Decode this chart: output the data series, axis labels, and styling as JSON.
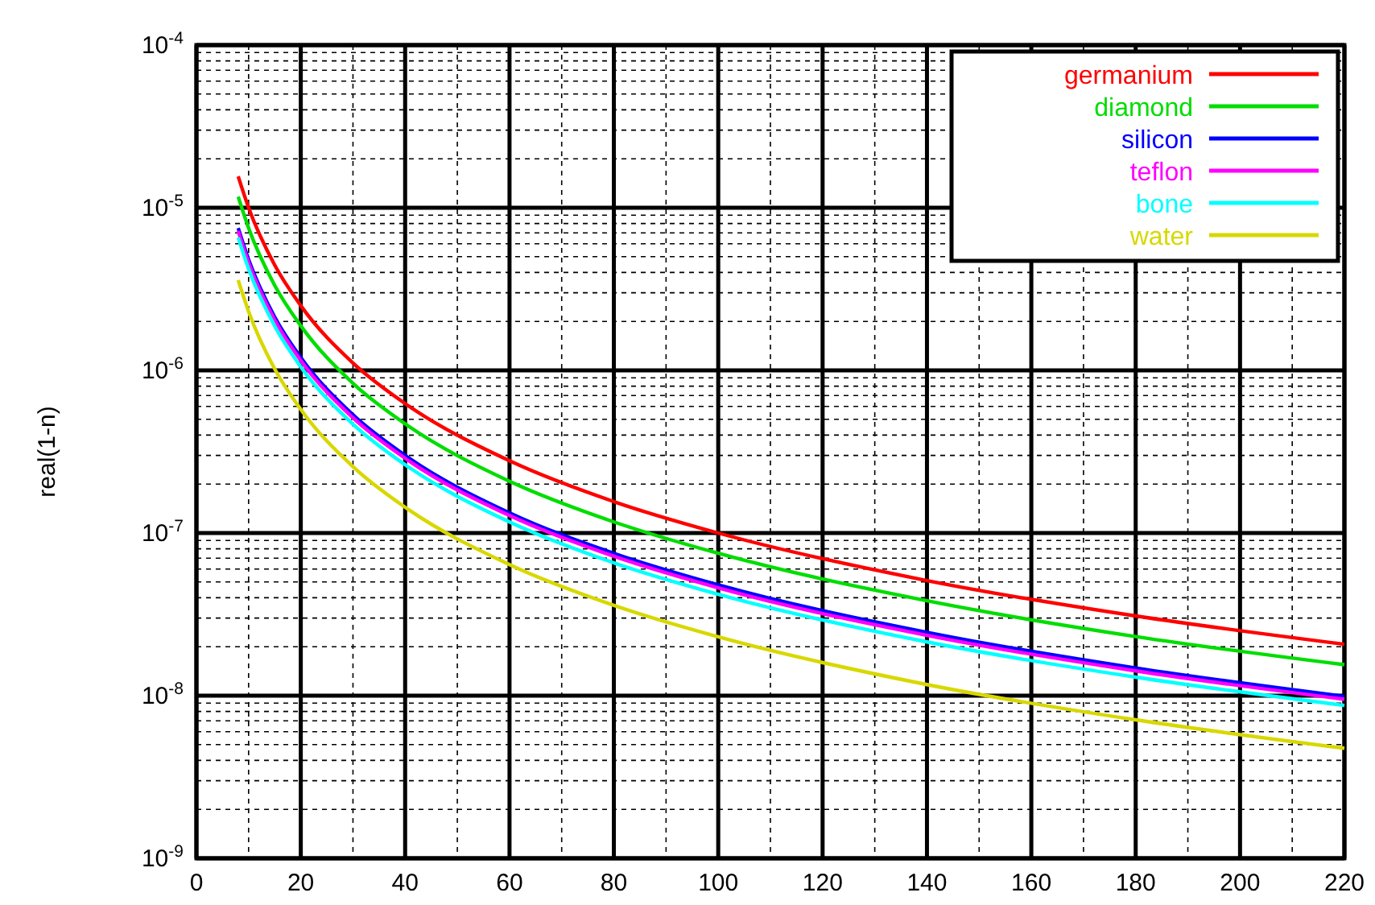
{
  "chart_data": {
    "type": "line",
    "ylabel": "real(1-n)",
    "log": "y",
    "grid": true,
    "legend": "top right",
    "line_style": "solid",
    "x": [
      8,
      10,
      15,
      20,
      30,
      40,
      60,
      80,
      100,
      140,
      180,
      220
    ],
    "xlim": [
      0,
      220
    ],
    "xticks": [
      0,
      20,
      40,
      60,
      80,
      100,
      120,
      140,
      160,
      180,
      200,
      220
    ],
    "ylim": [
      1e-09,
      0.0001
    ],
    "yticks": [
      {
        "value": 1e-09,
        "label": "10$^{-9}$"
      },
      {
        "value": 1e-08,
        "label": "10$^{-8}$"
      },
      {
        "value": 1e-07,
        "label": "10$^{-7}$"
      },
      {
        "value": 1e-06,
        "label": "10$^{-6}$"
      },
      {
        "value": 1e-05,
        "label": "10$^{-5}$"
      },
      {
        "value": 0.0001,
        "label": "10$^{-4}$"
      }
    ],
    "series": [
      {
        "name": "germanium",
        "color": "#ff0000",
        "values": [
          1.56e-05,
          1e-05,
          4.44e-06,
          2.5e-06,
          1.11e-06,
          6.25e-07,
          2.78e-07,
          1.56e-07,
          1e-07,
          5.1e-08,
          3.09e-08,
          2.07e-08
        ]
      },
      {
        "name": "diamond",
        "color": "#00dd00",
        "values": [
          1.17e-05,
          7.5e-06,
          3.33e-06,
          1.88e-06,
          8.33e-07,
          4.69e-07,
          2.08e-07,
          1.17e-07,
          7.5e-08,
          3.83e-08,
          2.31e-08,
          1.55e-08
        ]
      },
      {
        "name": "silicon",
        "color": "#0000ff",
        "values": [
          7.5e-06,
          4.8e-06,
          2.13e-06,
          1.2e-06,
          5.33e-07,
          3e-07,
          1.33e-07,
          7.5e-08,
          4.8e-08,
          2.45e-08,
          1.48e-08,
          9.9e-09
        ]
      },
      {
        "name": "teflon",
        "color": "#ff00ff",
        "values": [
          7.19e-06,
          4.6e-06,
          2.04e-06,
          1.15e-06,
          5.11e-07,
          2.88e-07,
          1.28e-07,
          7.19e-08,
          4.6e-08,
          2.35e-08,
          1.42e-08,
          9.5e-09
        ]
      },
      {
        "name": "bone",
        "color": "#00ffff",
        "values": [
          6.56e-06,
          4.2e-06,
          1.87e-06,
          1.05e-06,
          4.67e-07,
          2.63e-07,
          1.17e-07,
          6.56e-08,
          4.2e-08,
          2.14e-08,
          1.3e-08,
          8.7e-09
        ]
      },
      {
        "name": "water",
        "color": "#d8d800",
        "values": [
          3.59e-06,
          2.3e-06,
          1.02e-06,
          5.75e-07,
          2.56e-07,
          1.44e-07,
          6.39e-08,
          3.59e-08,
          2.3e-08,
          1.17e-08,
          7.1e-09,
          4.75e-09
        ]
      }
    ]
  }
}
